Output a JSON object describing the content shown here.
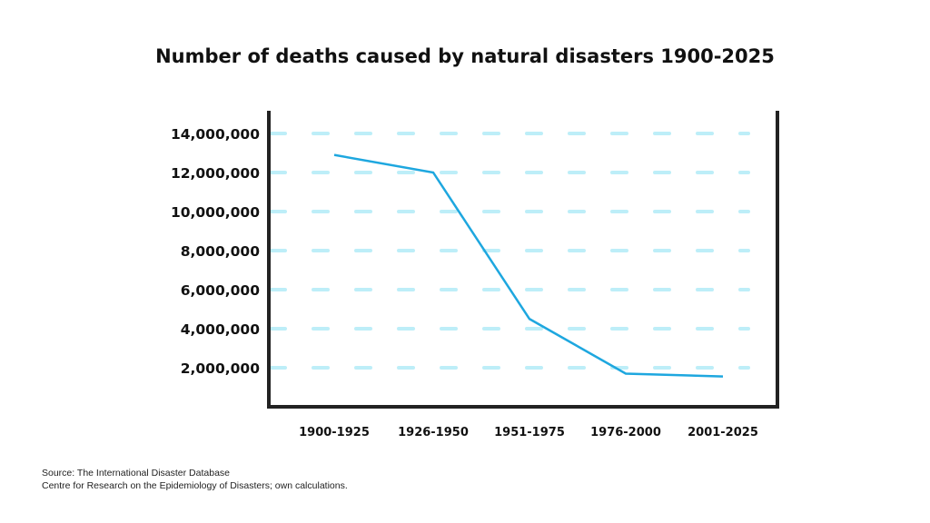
{
  "chart_data": {
    "type": "line",
    "title": "Number of deaths caused by natural disasters 1900-2025",
    "xlabel": "",
    "ylabel": "",
    "categories": [
      "1900-1925",
      "1926-1950",
      "1951-1975",
      "1976-2000",
      "2001-2025"
    ],
    "values": [
      12900000,
      12000000,
      4500000,
      1700000,
      1550000
    ],
    "yticks": [
      2000000,
      4000000,
      6000000,
      8000000,
      10000000,
      12000000,
      14000000
    ],
    "ytick_labels": [
      "2,000,000",
      "4,000,000",
      "6,000,000",
      "8,000,000",
      "10,000,000",
      "12,000,000",
      "14,000,000"
    ],
    "ylim": [
      0,
      15000000
    ],
    "grid": true,
    "legend": "none",
    "colors": {
      "line": "#1ea7df",
      "grid": "#bdeef8",
      "axis": "#222222"
    }
  },
  "source": {
    "line1": "Source: The International Disaster Database",
    "line2": "Centre for Research on the Epidemiology of Disasters; own calculations."
  }
}
